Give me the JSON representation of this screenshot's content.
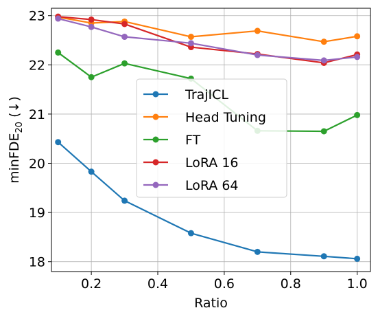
{
  "chart_data": {
    "type": "line",
    "xlabel": "Ratio",
    "ylabel": {
      "main": "minFDE",
      "sub": "20",
      "suffix": " (↓)"
    },
    "xlim": [
      0.08,
      1.04
    ],
    "ylim": [
      17.8,
      23.15
    ],
    "xticks": [
      0.2,
      0.4,
      0.6,
      0.8,
      1.0
    ],
    "xtick_labels": [
      "0.2",
      "0.4",
      "0.6",
      "0.8",
      "1.0"
    ],
    "yticks": [
      18,
      19,
      20,
      21,
      22,
      23
    ],
    "ytick_labels": [
      "18",
      "19",
      "20",
      "21",
      "22",
      "23"
    ],
    "grid": true,
    "legend_position": "center",
    "x": [
      0.1,
      0.2,
      0.3,
      0.5,
      0.7,
      0.9,
      1.0
    ],
    "series": [
      {
        "name": "TrajICL",
        "color": "#1f77b4",
        "values": [
          20.43,
          19.83,
          19.24,
          18.58,
          18.2,
          18.11,
          18.06
        ]
      },
      {
        "name": "Head Tuning",
        "color": "#ff7f0e",
        "values": [
          22.97,
          22.85,
          22.88,
          22.57,
          22.69,
          22.47,
          22.58
        ]
      },
      {
        "name": "FT",
        "color": "#2ca02c",
        "values": [
          22.25,
          21.75,
          22.03,
          21.72,
          20.66,
          20.65,
          20.98
        ]
      },
      {
        "name": "LoRA 16",
        "color": "#d62728",
        "values": [
          22.98,
          22.92,
          22.83,
          22.36,
          22.22,
          22.04,
          22.21
        ]
      },
      {
        "name": "LoRA 64",
        "color": "#9467bd",
        "values": [
          22.94,
          22.77,
          22.57,
          22.44,
          22.2,
          22.09,
          22.16
        ]
      }
    ]
  }
}
